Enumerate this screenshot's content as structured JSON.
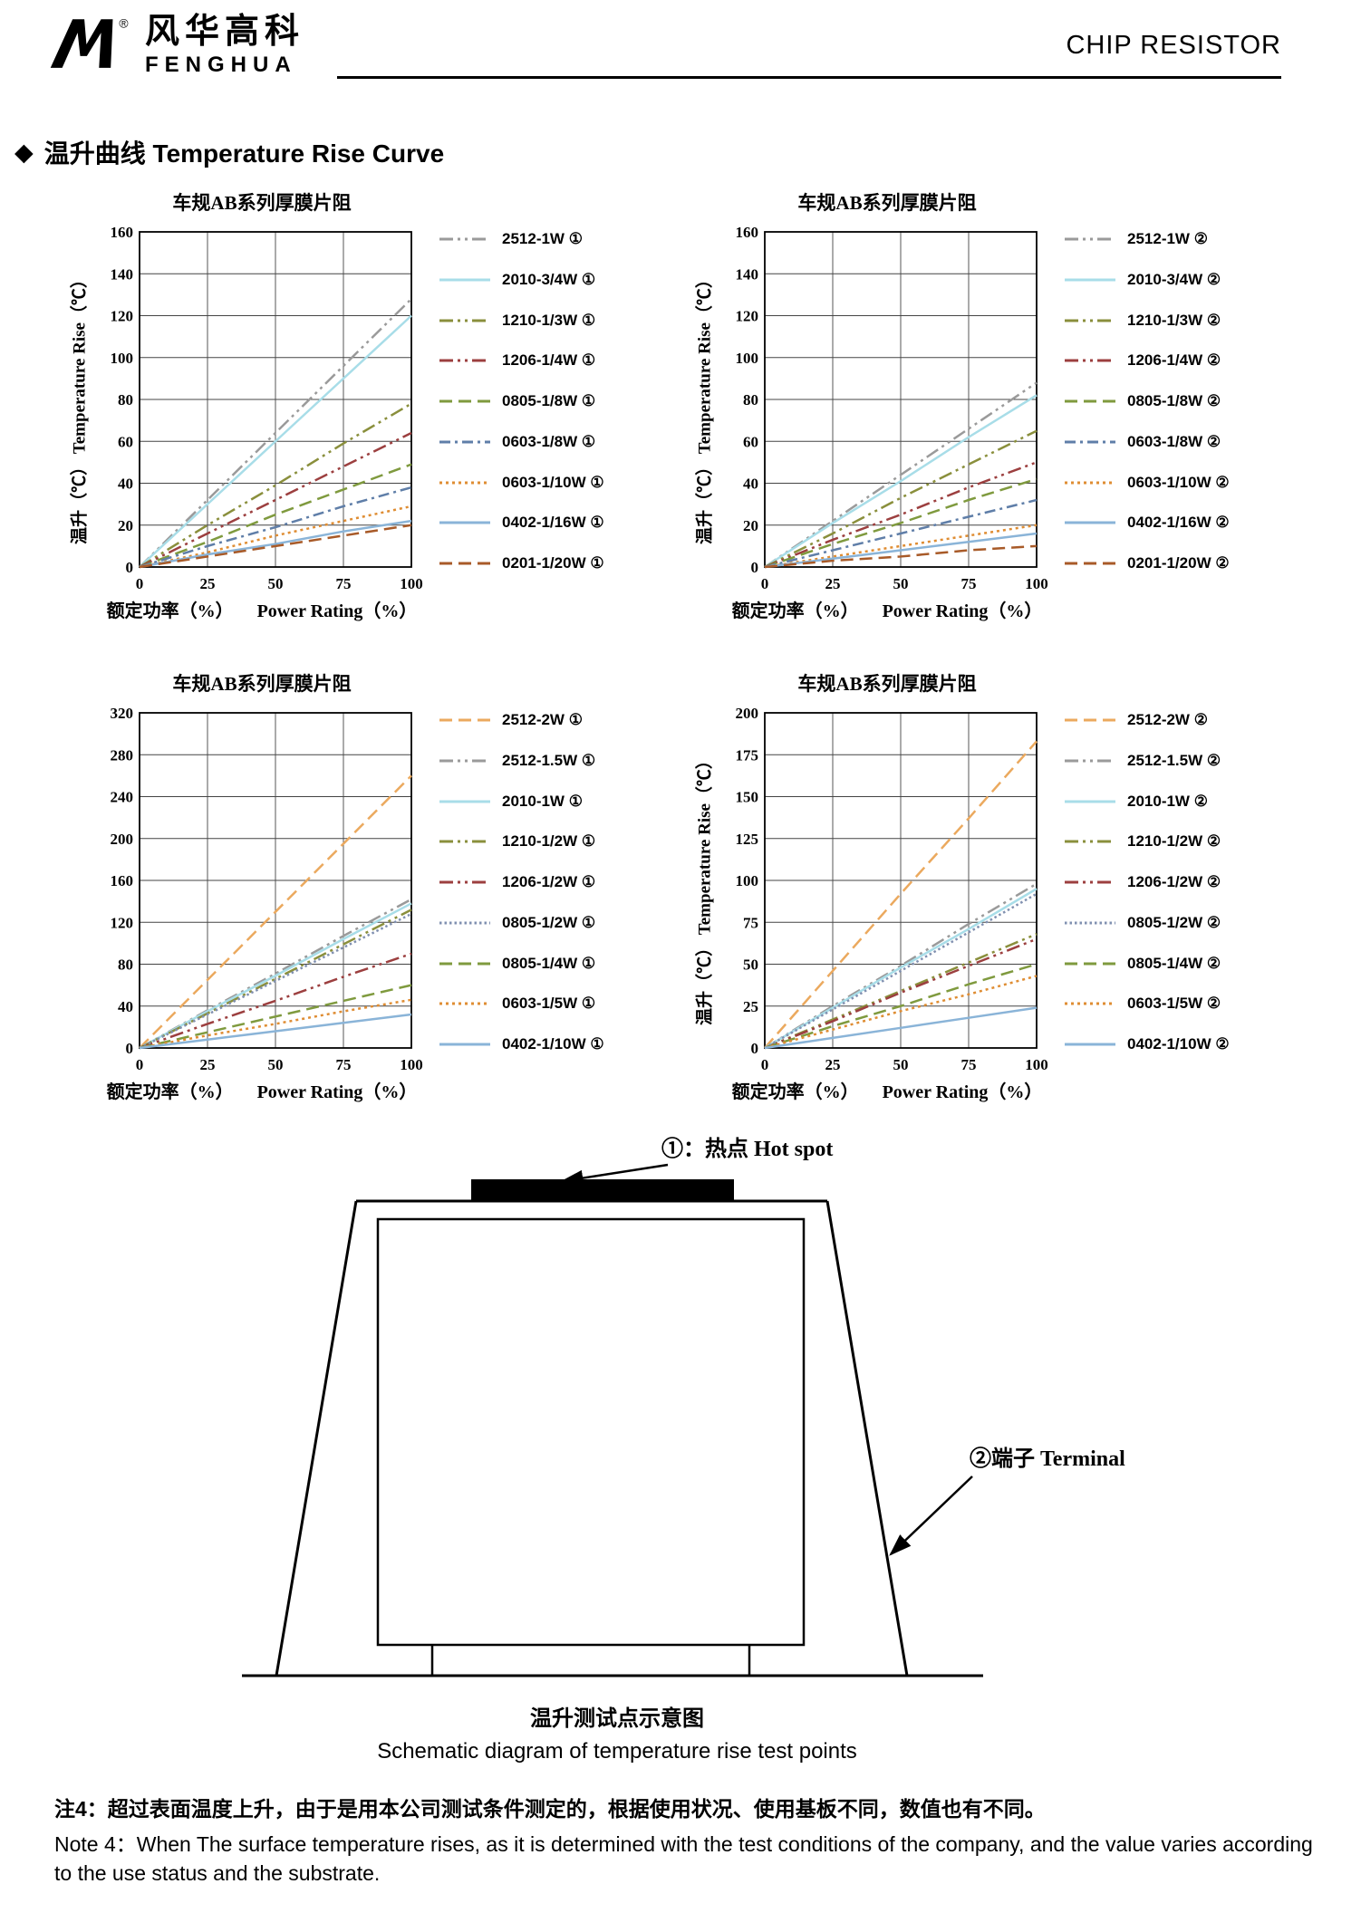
{
  "header": {
    "registered_mark": "®",
    "brand_cn": "风华高科",
    "brand_en": "FENGHUA",
    "doc_title": "CHIP RESISTOR"
  },
  "section": {
    "marker": "◆",
    "title": "温升曲线 Temperature Rise Curve"
  },
  "chart_data": [
    {
      "type": "line",
      "title": "车规AB系列厚膜片阻",
      "xlabel_cn": "额定功率（%）",
      "xlabel_en": "Power Rating（%）",
      "ylabel": "温升（℃）  Temperature Rise（℃）",
      "xlim": [
        0,
        100
      ],
      "ylim": [
        0,
        160
      ],
      "x_ticks": [
        0,
        25,
        50,
        75,
        100
      ],
      "y_ticks": [
        0,
        20,
        40,
        60,
        80,
        100,
        120,
        140,
        160
      ],
      "x": [
        0,
        25,
        50,
        75,
        100
      ],
      "series": [
        {
          "label": "2512-1W ①",
          "color": "#9a9a9a",
          "style": "dashdotdot",
          "values": [
            0,
            32,
            64,
            96,
            128
          ]
        },
        {
          "label": "2010-3/4W ①",
          "color": "#a8dde8",
          "style": "solid",
          "values": [
            0,
            30,
            60,
            90,
            120
          ]
        },
        {
          "label": "1210-1/3W ①",
          "color": "#8a8f3c",
          "style": "dashdotdot",
          "values": [
            0,
            20,
            39,
            59,
            78
          ]
        },
        {
          "label": "1206-1/4W ①",
          "color": "#9c3f3f",
          "style": "dashdotdot",
          "values": [
            0,
            16,
            32,
            48,
            64
          ]
        },
        {
          "label": "0805-1/8W ①",
          "color": "#7f9a3e",
          "style": "dash",
          "values": [
            0,
            12,
            25,
            37,
            49
          ]
        },
        {
          "label": "0603-1/8W ①",
          "color": "#5f7ea8",
          "style": "dashdot",
          "values": [
            0,
            10,
            19,
            29,
            38
          ]
        },
        {
          "label": "0603-1/10W ①",
          "color": "#df8d33",
          "style": "dot",
          "values": [
            0,
            7,
            15,
            22,
            29
          ]
        },
        {
          "label": "0402-1/16W ①",
          "color": "#8ab4d8",
          "style": "solid",
          "values": [
            0,
            6,
            11,
            17,
            22
          ]
        },
        {
          "label": "0201-1/20W ①",
          "color": "#a85a28",
          "style": "dash",
          "values": [
            0,
            5,
            10,
            15,
            20
          ]
        }
      ]
    },
    {
      "type": "line",
      "title": "车规AB系列厚膜片阻",
      "xlabel_cn": "额定功率（%）",
      "xlabel_en": "Power Rating（%）",
      "ylabel": "温升（℃）  Temperature Rise（℃）",
      "xlim": [
        0,
        100
      ],
      "ylim": [
        0,
        160
      ],
      "x_ticks": [
        0,
        25,
        50,
        75,
        100
      ],
      "y_ticks": [
        0,
        20,
        40,
        60,
        80,
        100,
        120,
        140,
        160
      ],
      "x": [
        0,
        25,
        50,
        75,
        100
      ],
      "series": [
        {
          "label": "2512-1W ②",
          "color": "#9a9a9a",
          "style": "dashdotdot",
          "values": [
            0,
            22,
            44,
            66,
            88
          ]
        },
        {
          "label": "2010-3/4W ②",
          "color": "#a8dde8",
          "style": "solid",
          "values": [
            0,
            21,
            41,
            62,
            82
          ]
        },
        {
          "label": "1210-1/3W ②",
          "color": "#8a8f3c",
          "style": "dashdotdot",
          "values": [
            0,
            16,
            33,
            49,
            65
          ]
        },
        {
          "label": "1206-1/4W ②",
          "color": "#9c3f3f",
          "style": "dashdotdot",
          "values": [
            0,
            13,
            25,
            38,
            50
          ]
        },
        {
          "label": "0805-1/8W ②",
          "color": "#7f9a3e",
          "style": "dash",
          "values": [
            0,
            11,
            21,
            32,
            42
          ]
        },
        {
          "label": "0603-1/8W ②",
          "color": "#5f7ea8",
          "style": "dashdot",
          "values": [
            0,
            8,
            16,
            24,
            32
          ]
        },
        {
          "label": "0603-1/10W ②",
          "color": "#df8d33",
          "style": "dot",
          "values": [
            0,
            5,
            10,
            15,
            20
          ]
        },
        {
          "label": "0402-1/16W ②",
          "color": "#8ab4d8",
          "style": "solid",
          "values": [
            0,
            4,
            8,
            12,
            16
          ]
        },
        {
          "label": "0201-1/20W ②",
          "color": "#a85a28",
          "style": "dash",
          "values": [
            0,
            3,
            5,
            8,
            10
          ]
        }
      ]
    },
    {
      "type": "line",
      "title": "车规AB系列厚膜片阻",
      "xlabel_cn": "额定功率（%）",
      "xlabel_en": "Power Rating（%）",
      "ylabel": "",
      "xlim": [
        0,
        100
      ],
      "ylim": [
        0,
        320
      ],
      "x_ticks": [
        0,
        25,
        50,
        75,
        100
      ],
      "y_ticks": [
        0,
        40,
        80,
        120,
        160,
        200,
        240,
        280,
        320
      ],
      "x": [
        0,
        25,
        50,
        75,
        100
      ],
      "series": [
        {
          "label": "2512-2W ①",
          "color": "#eba95e",
          "style": "dash",
          "values": [
            0,
            65,
            130,
            195,
            260
          ]
        },
        {
          "label": "2512-1.5W ①",
          "color": "#9a9a9a",
          "style": "dashdotdot",
          "values": [
            0,
            36,
            71,
            107,
            142
          ]
        },
        {
          "label": "2010-1W ①",
          "color": "#a8dde8",
          "style": "solid",
          "values": [
            0,
            35,
            69,
            104,
            138
          ]
        },
        {
          "label": "1210-1/2W ①",
          "color": "#8a8f3c",
          "style": "dashdotdot",
          "values": [
            0,
            33,
            66,
            99,
            132
          ]
        },
        {
          "label": "1206-1/2W ①",
          "color": "#9c3f3f",
          "style": "dashdotdot",
          "values": [
            0,
            23,
            45,
            68,
            90
          ]
        },
        {
          "label": "0805-1/2W ①",
          "color": "#8090b0",
          "style": "densedot",
          "values": [
            0,
            32,
            64,
            96,
            128
          ]
        },
        {
          "label": "0805-1/4W ①",
          "color": "#7f9a3e",
          "style": "dash",
          "values": [
            0,
            15,
            30,
            45,
            60
          ]
        },
        {
          "label": "0603-1/5W ①",
          "color": "#df8d33",
          "style": "dot",
          "values": [
            0,
            12,
            23,
            35,
            46
          ]
        },
        {
          "label": "0402-1/10W ①",
          "color": "#8ab4d8",
          "style": "solid",
          "values": [
            0,
            8,
            16,
            24,
            32
          ]
        }
      ]
    },
    {
      "type": "line",
      "title": "车规AB系列厚膜片阻",
      "xlabel_cn": "额定功率（%）",
      "xlabel_en": "Power Rating（%）",
      "ylabel": "温升（℃）  Temperature Rise（℃）",
      "xlim": [
        0,
        100
      ],
      "ylim": [
        0,
        200
      ],
      "x_ticks": [
        0,
        25,
        50,
        75,
        100
      ],
      "y_ticks": [
        0,
        25,
        50,
        75,
        100,
        125,
        150,
        175,
        200
      ],
      "x": [
        0,
        25,
        50,
        75,
        100
      ],
      "series": [
        {
          "label": "2512-2W ②",
          "color": "#eba95e",
          "style": "dash",
          "values": [
            0,
            46,
            92,
            137,
            183
          ]
        },
        {
          "label": "2512-1.5W ②",
          "color": "#9a9a9a",
          "style": "dashdotdot",
          "values": [
            0,
            25,
            49,
            74,
            98
          ]
        },
        {
          "label": "2010-1W ②",
          "color": "#a8dde8",
          "style": "solid",
          "values": [
            0,
            24,
            48,
            71,
            95
          ]
        },
        {
          "label": "1210-1/2W ②",
          "color": "#8a8f3c",
          "style": "dashdotdot",
          "values": [
            0,
            17,
            34,
            51,
            68
          ]
        },
        {
          "label": "1206-1/2W ②",
          "color": "#9c3f3f",
          "style": "dashdotdot",
          "values": [
            0,
            16,
            33,
            49,
            65
          ]
        },
        {
          "label": "0805-1/2W ②",
          "color": "#8090b0",
          "style": "densedot",
          "values": [
            0,
            23,
            46,
            69,
            92
          ]
        },
        {
          "label": "0805-1/4W ②",
          "color": "#7f9a3e",
          "style": "dash",
          "values": [
            0,
            13,
            25,
            38,
            50
          ]
        },
        {
          "label": "0603-1/5W ②",
          "color": "#df8d33",
          "style": "dot",
          "values": [
            0,
            11,
            22,
            32,
            43
          ]
        },
        {
          "label": "0402-1/10W ②",
          "color": "#8ab4d8",
          "style": "solid",
          "values": [
            0,
            6,
            12,
            18,
            24
          ]
        }
      ]
    }
  ],
  "schematic": {
    "hotspot_label": "①：热点  Hot spot",
    "terminal_label": "②端子 Terminal",
    "caption_cn": "温升测试点示意图",
    "caption_en": "Schematic diagram of temperature rise test points"
  },
  "notes": {
    "note4_cn": "注4：超过表面温度上升，由于是用本公司测试条件测定的，根据使用状况、使用基板不同，数值也有不同。",
    "note4_en": "Note 4：When The surface temperature rises, as it is determined with the test conditions of the company, and the value varies according to the use status and the substrate."
  }
}
